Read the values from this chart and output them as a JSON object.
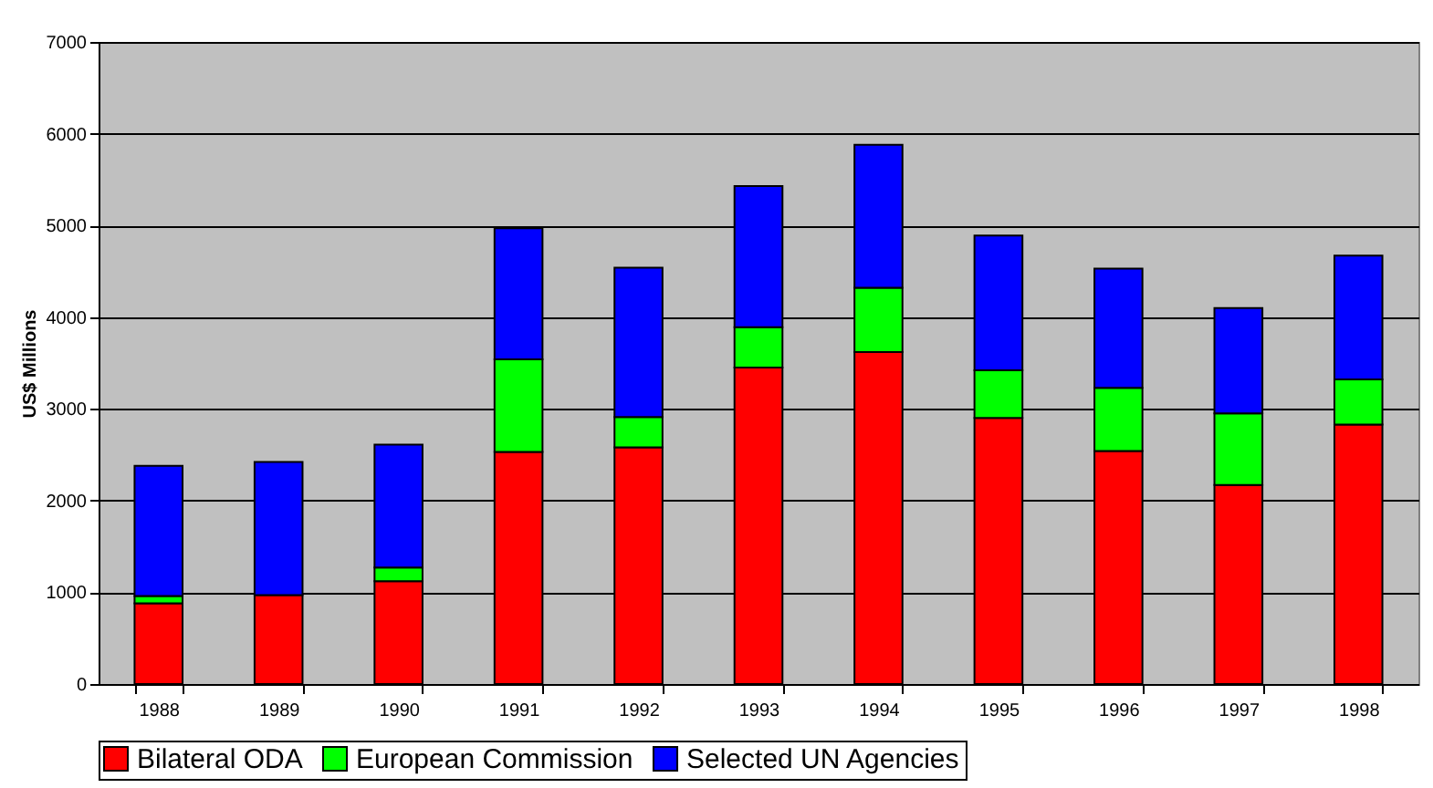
{
  "chart_data": {
    "type": "bar",
    "stacked": true,
    "ylabel": "US$ Millions",
    "categories": [
      "1988",
      "1989",
      "1990",
      "1991",
      "1992",
      "1993",
      "1994",
      "1995",
      "1996",
      "1997",
      "1998"
    ],
    "series": [
      {
        "name": "Bilateral ODA",
        "color": "#ff0000",
        "values": [
          880,
          970,
          1120,
          2530,
          2580,
          3450,
          3620,
          2900,
          2540,
          2170,
          2830
        ]
      },
      {
        "name": "European Commission",
        "color": "#00ff00",
        "values": [
          80,
          null,
          150,
          1010,
          330,
          440,
          700,
          520,
          690,
          780,
          490
        ]
      },
      {
        "name": "Selected UN Agencies",
        "color": "#0000ff",
        "values": [
          1420,
          1450,
          1340,
          1430,
          1630,
          1540,
          1560,
          1470,
          1300,
          1150,
          1350
        ]
      }
    ],
    "ylim": [
      0,
      7000
    ],
    "yticks": [
      0,
      1000,
      2000,
      3000,
      4000,
      5000,
      6000,
      7000
    ],
    "grid": "y",
    "legend": "bottom"
  }
}
